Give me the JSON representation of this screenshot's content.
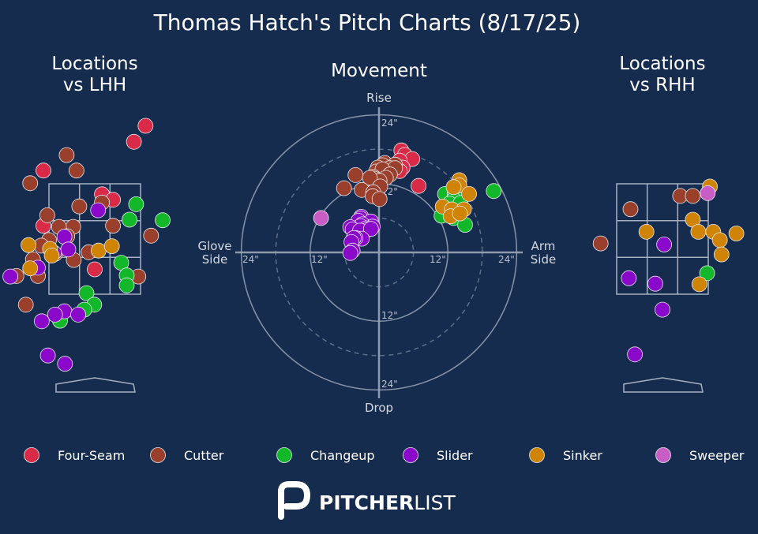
{
  "title": "Thomas Hatch's Pitch Charts (8/17/25)",
  "colors": {
    "background": "#152c4f",
    "Four-Seam": "#d92b47",
    "Cutter": "#9a3f2b",
    "Changeup": "#12b82a",
    "Slider": "#8a08c9",
    "Sinker": "#cf8406",
    "Sweeper": "#c85ec5"
  },
  "brand": {
    "prefix": "PITCHER",
    "suffix": "LIST"
  },
  "chart_data": [
    {
      "type": "scatter",
      "title_lines": [
        "Locations",
        "vs LHH"
      ],
      "units": "feet (catcher view, plate_x vs plate_z)",
      "xlim": [
        -2.3,
        2.3
      ],
      "ylim": [
        -0.6,
        5.1
      ],
      "strike_zone": {
        "x": [
          -0.83,
          0.83
        ],
        "z": [
          1.5,
          3.5
        ]
      },
      "series": [
        {
          "name": "Four-Seam",
          "points": [
            [
              0.92,
              4.55
            ],
            [
              0.71,
              4.26
            ],
            [
              -0.93,
              3.74
            ],
            [
              0.13,
              3.31
            ],
            [
              0.33,
              3.21
            ],
            [
              -0.93,
              2.74
            ],
            [
              0.0,
              1.95
            ]
          ]
        },
        {
          "name": "Cutter",
          "points": [
            [
              -0.51,
              4.02
            ],
            [
              -0.33,
              3.74
            ],
            [
              -1.17,
              3.51
            ],
            [
              0.13,
              3.16
            ],
            [
              -0.28,
              3.09
            ],
            [
              -0.86,
              2.93
            ],
            [
              -0.39,
              2.72
            ],
            [
              -0.65,
              2.72
            ],
            [
              0.33,
              2.74
            ],
            [
              -0.5,
              2.55
            ],
            [
              -0.83,
              2.48
            ],
            [
              1.02,
              2.56
            ],
            [
              -0.97,
              2.38
            ],
            [
              -0.11,
              2.26
            ],
            [
              -0.72,
              2.23
            ],
            [
              -0.38,
              2.12
            ],
            [
              -1.12,
              2.13
            ],
            [
              0.79,
              1.82
            ],
            [
              -1.42,
              1.83
            ],
            [
              -1.03,
              1.83
            ],
            [
              -1.25,
              1.31
            ]
          ]
        },
        {
          "name": "Changeup",
          "points": [
            [
              0.75,
              3.13
            ],
            [
              1.23,
              2.84
            ],
            [
              0.63,
              2.85
            ],
            [
              0.48,
              2.07
            ],
            [
              0.58,
              1.84
            ],
            [
              0.58,
              1.66
            ],
            [
              -0.15,
              1.52
            ],
            [
              -0.01,
              1.31
            ],
            [
              -0.19,
              1.22
            ],
            [
              -0.63,
              1.02
            ]
          ]
        },
        {
          "name": "Slider",
          "points": [
            [
              0.06,
              3.02
            ],
            [
              -0.55,
              2.54
            ],
            [
              -0.48,
              2.31
            ],
            [
              -1.03,
              1.98
            ],
            [
              -0.74,
              2.25
            ],
            [
              -1.53,
              1.82
            ],
            [
              -0.55,
              1.19
            ],
            [
              -0.72,
              1.13
            ],
            [
              -0.3,
              1.13
            ],
            [
              -0.96,
              1.01
            ],
            [
              -0.85,
              0.39
            ],
            [
              -0.54,
              0.24
            ]
          ]
        },
        {
          "name": "Sinker",
          "points": [
            [
              -1.2,
              2.39
            ],
            [
              -0.81,
              2.32
            ],
            [
              -0.78,
              2.2
            ],
            [
              0.07,
              2.29
            ],
            [
              0.31,
              2.37
            ],
            [
              -1.17,
              1.97
            ]
          ]
        },
        {
          "name": "Sweeper",
          "points": []
        }
      ]
    },
    {
      "type": "polar-scatter",
      "title": "Movement",
      "units": "inches of break",
      "axis_labels": {
        "top": "Rise",
        "bottom": "Drop",
        "left": [
          "Glove",
          "Side"
        ],
        "right": [
          "Arm",
          "Side"
        ]
      },
      "ring_labels": [
        "12\"",
        "24\""
      ],
      "rings": [
        6,
        12,
        18,
        24
      ],
      "series": [
        {
          "name": "Four-Seam",
          "points": [
            [
              3.9,
              17.8
            ],
            [
              4.5,
              17.0
            ],
            [
              5.8,
              16.3
            ],
            [
              3.6,
              16.0
            ],
            [
              4.1,
              14.8
            ],
            [
              3.6,
              14.2
            ],
            [
              6.9,
              11.6
            ]
          ]
        },
        {
          "name": "Cutter",
          "points": [
            [
              1.0,
              15.6
            ],
            [
              2.8,
              15.3
            ],
            [
              0.6,
              15.2
            ],
            [
              -0.2,
              14.8
            ],
            [
              1.9,
              14.7
            ],
            [
              2.8,
              14.7
            ],
            [
              -0.5,
              14.1
            ],
            [
              0.6,
              14.5
            ],
            [
              1.9,
              13.6
            ],
            [
              -1.0,
              13.2
            ],
            [
              1.2,
              13.0
            ],
            [
              -4.1,
              13.5
            ],
            [
              -0.9,
              12.9
            ],
            [
              0.1,
              12.5
            ],
            [
              -1.6,
              13.0
            ],
            [
              0.2,
              11.5
            ],
            [
              -6.1,
              11.2
            ],
            [
              -3.0,
              10.9
            ],
            [
              -1.0,
              10.5
            ],
            [
              -1.1,
              9.8
            ],
            [
              0.1,
              9.3
            ]
          ]
        },
        {
          "name": "Changeup",
          "points": [
            [
              20.0,
              10.7
            ],
            [
              11.5,
              10.2
            ],
            [
              13.2,
              10.3
            ],
            [
              13.0,
              9.2
            ],
            [
              12.3,
              8.5
            ],
            [
              14.2,
              8.6
            ],
            [
              12.0,
              7.5
            ],
            [
              11.5,
              6.9
            ],
            [
              13.6,
              6.6
            ],
            [
              10.9,
              6.4
            ],
            [
              13.0,
              6.0
            ],
            [
              15.0,
              4.8
            ]
          ]
        },
        {
          "name": "Slider",
          "points": [
            [
              -3.1,
              6.2
            ],
            [
              -3.2,
              5.9
            ],
            [
              -3.6,
              5.5
            ],
            [
              -1.4,
              5.4
            ],
            [
              -2.9,
              4.9
            ],
            [
              -1.1,
              4.5
            ],
            [
              -3.2,
              4.6
            ],
            [
              -2.2,
              4.2
            ],
            [
              -5.0,
              4.4
            ],
            [
              -1.9,
              4.0
            ],
            [
              -4.6,
              4.0
            ],
            [
              -3.3,
              3.8
            ],
            [
              -1.4,
              4.1
            ],
            [
              -3.0,
              2.4
            ],
            [
              -4.1,
              2.5
            ],
            [
              -4.4,
              2.5
            ],
            [
              -4.8,
              1.8
            ],
            [
              -4.6,
              0.3
            ],
            [
              -5.0,
              -0.1
            ]
          ]
        },
        {
          "name": "Sinker",
          "points": [
            [
              14.0,
              12.6
            ],
            [
              14.0,
              11.7
            ],
            [
              13.0,
              11.4
            ],
            [
              15.7,
              10.2
            ],
            [
              11.1,
              8.0
            ],
            [
              12.7,
              7.5
            ],
            [
              14.8,
              7.5
            ],
            [
              12.5,
              6.3
            ],
            [
              14.1,
              6.8
            ]
          ]
        },
        {
          "name": "Sweeper",
          "points": [
            [
              -10.1,
              6.0
            ]
          ]
        }
      ]
    },
    {
      "type": "scatter",
      "title_lines": [
        "Locations",
        "vs RHH"
      ],
      "units": "feet (catcher view, plate_x vs plate_z)",
      "xlim": [
        -2.3,
        2.3
      ],
      "ylim": [
        -0.6,
        5.1
      ],
      "strike_zone": {
        "x": [
          -0.83,
          0.83
        ],
        "z": [
          1.5,
          3.5
        ]
      },
      "series": [
        {
          "name": "Four-Seam",
          "points": []
        },
        {
          "name": "Cutter",
          "points": [
            [
              0.32,
              3.28
            ],
            [
              0.55,
              3.28
            ],
            [
              -0.58,
              3.04
            ],
            [
              -1.12,
              2.42
            ]
          ]
        },
        {
          "name": "Changeup",
          "points": [
            [
              0.81,
              1.88
            ]
          ]
        },
        {
          "name": "Slider",
          "points": [
            [
              0.03,
              2.4
            ],
            [
              -0.61,
              1.79
            ],
            [
              -0.13,
              1.69
            ],
            [
              0.0,
              1.22
            ],
            [
              -0.5,
              0.41
            ]
          ]
        },
        {
          "name": "Sinker",
          "points": [
            [
              0.86,
              3.45
            ],
            [
              -0.29,
              2.63
            ],
            [
              0.55,
              2.85
            ],
            [
              0.65,
              2.63
            ],
            [
              0.92,
              2.63
            ],
            [
              1.04,
              2.48
            ],
            [
              1.34,
              2.6
            ],
            [
              1.07,
              2.22
            ],
            [
              0.67,
              1.68
            ]
          ]
        },
        {
          "name": "Sweeper",
          "points": [
            [
              0.82,
              3.33
            ]
          ]
        }
      ]
    }
  ],
  "legend": [
    "Four-Seam",
    "Cutter",
    "Changeup",
    "Slider",
    "Sinker",
    "Sweeper"
  ]
}
